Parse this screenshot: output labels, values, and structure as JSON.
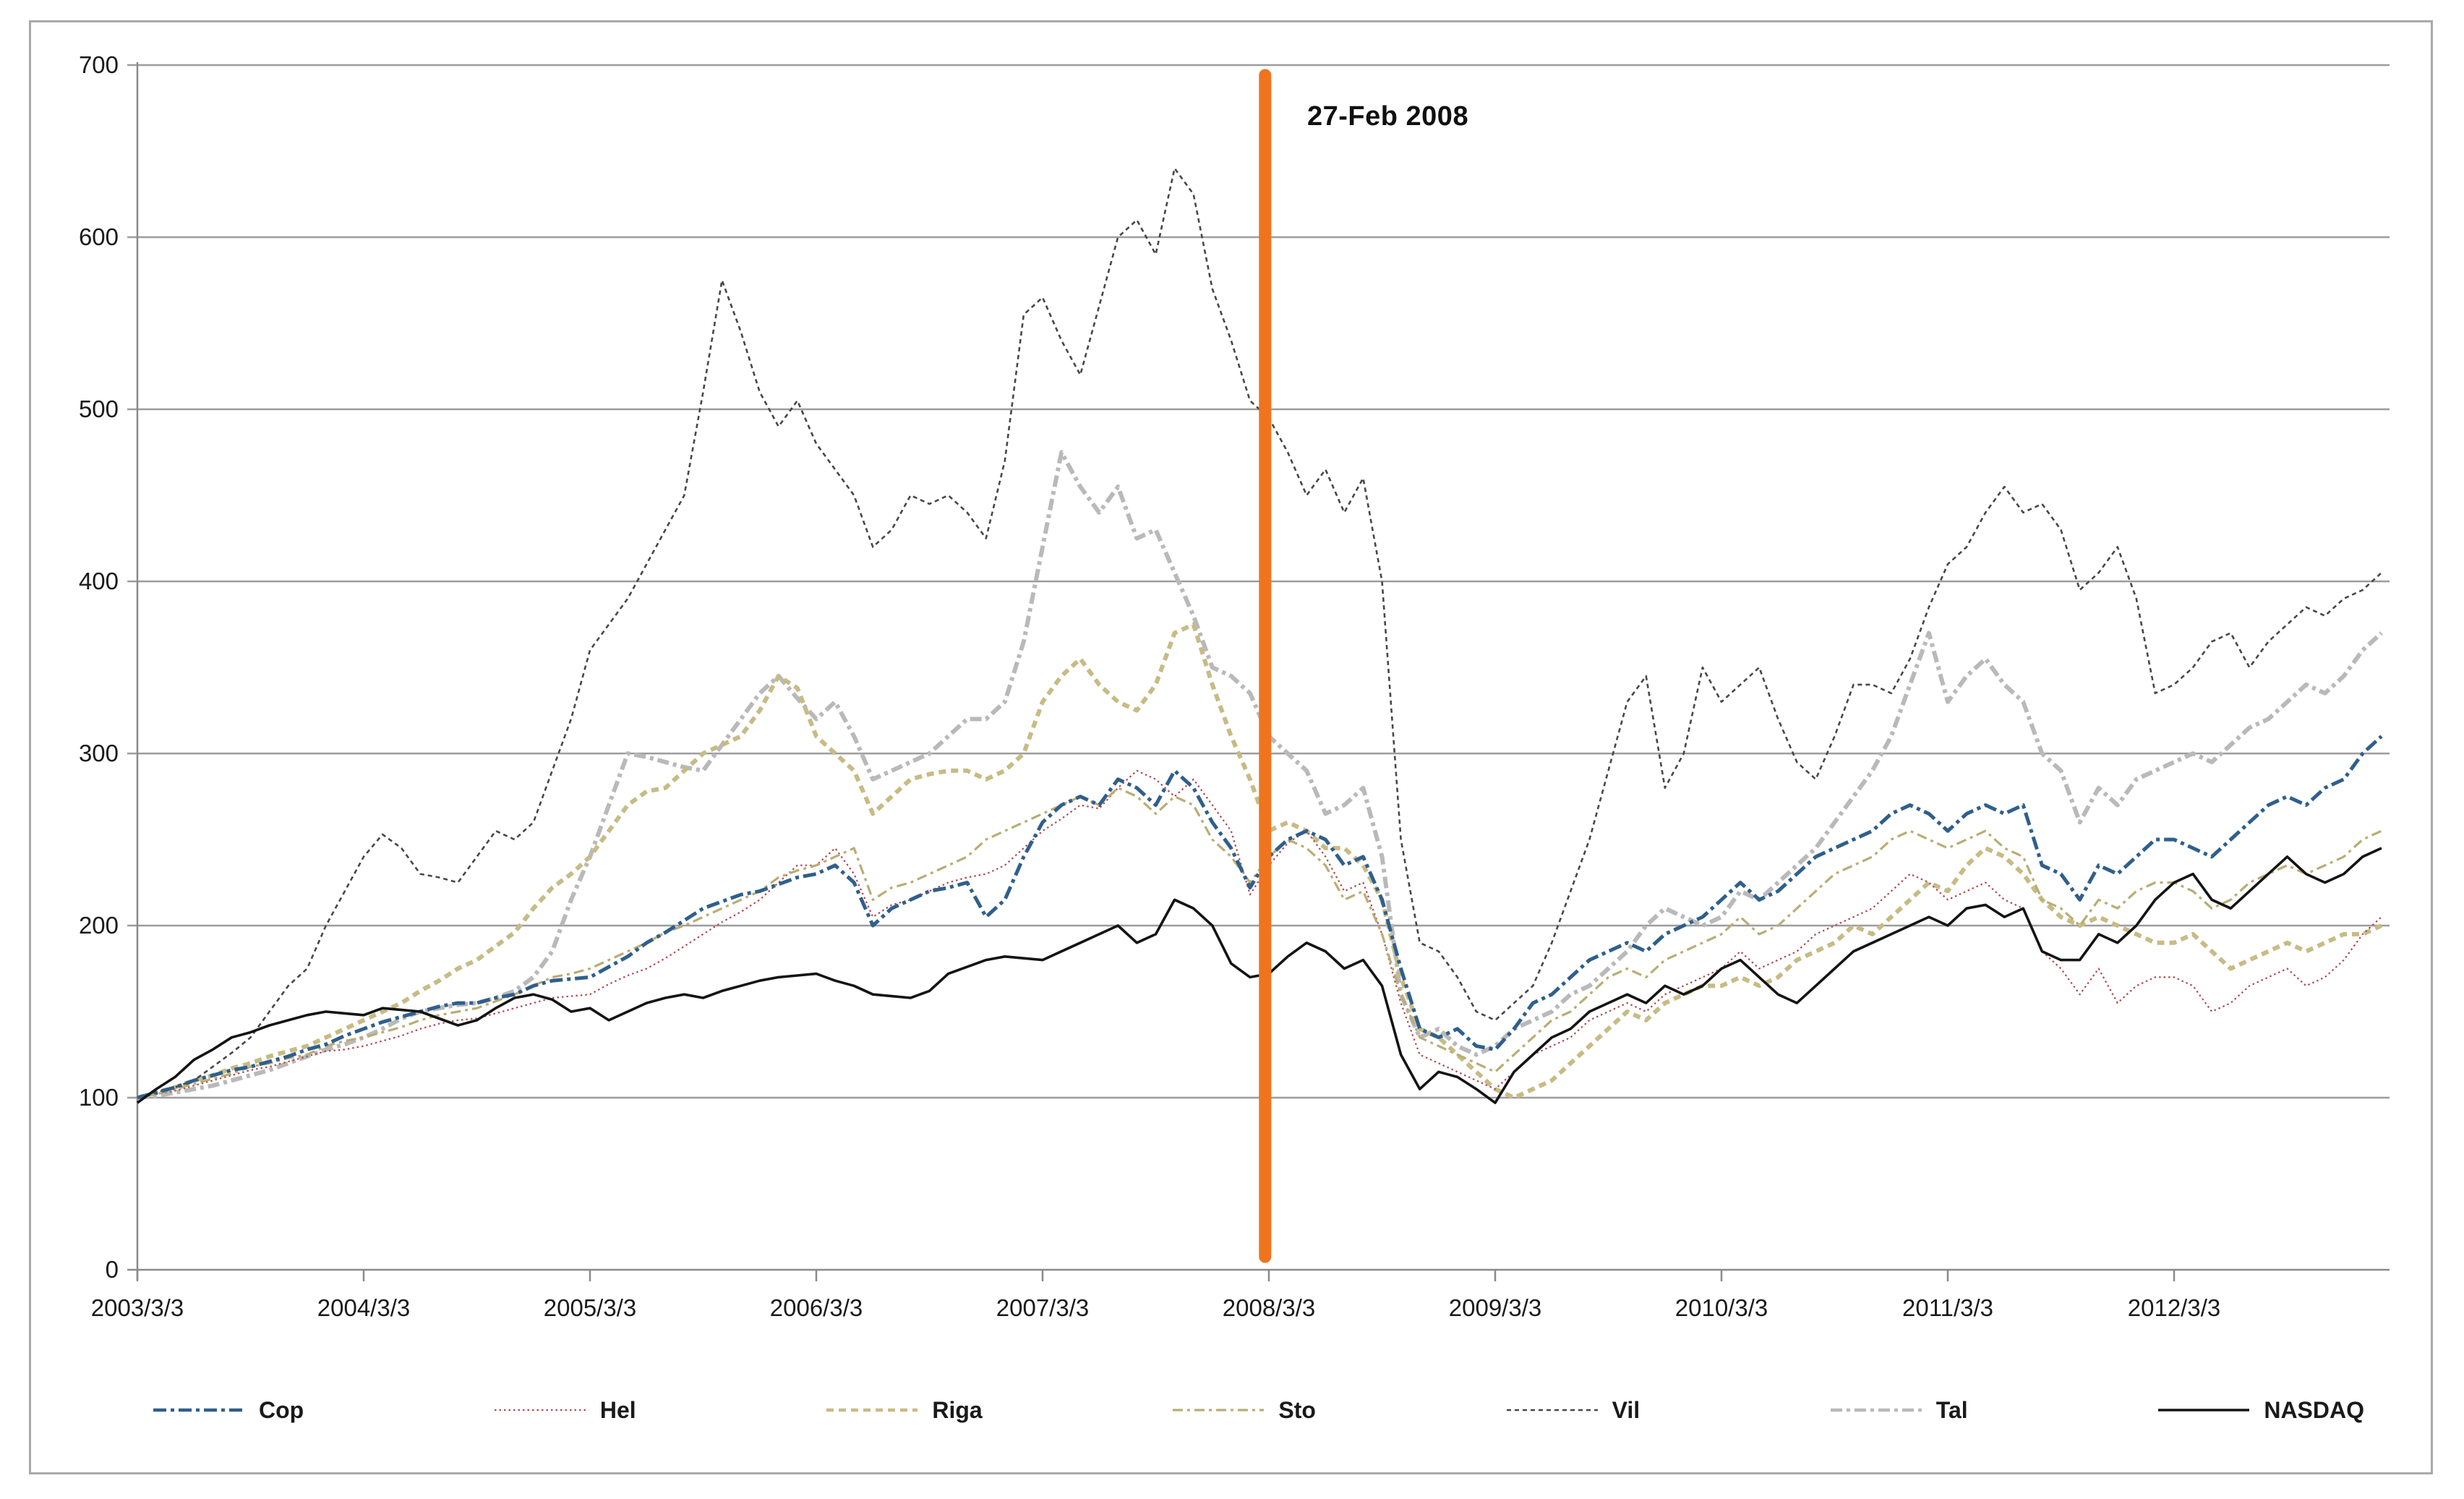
{
  "page": {
    "background": "#ffffff",
    "border_color": "#aaaaaa"
  },
  "annotation": {
    "label": "27-Feb 2008"
  },
  "event_line": {
    "label": "27-Feb 2008",
    "color": "#F0731E",
    "x_months": 59.8
  },
  "axes": {
    "grid_color": "#9c9c9c",
    "axis_color": "#8a8a8a",
    "label_color": "#1a1a1a",
    "y_ticks": [
      "0",
      "100",
      "200",
      "300",
      "400",
      "500",
      "600",
      "700"
    ],
    "x_ticks": [
      "2003/3/3",
      "2004/3/3",
      "2005/3/3",
      "2006/3/3",
      "2007/3/3",
      "2008/3/3",
      "2009/3/3",
      "2010/3/3",
      "2011/3/3",
      "2012/3/3"
    ]
  },
  "chart_data": {
    "type": "line",
    "title": "",
    "xlabel": "",
    "ylabel": "",
    "x_unit": "months since 2003-03-03 (index, base = 100)",
    "x_tick_labels": [
      "2003/3/3",
      "2004/3/3",
      "2005/3/3",
      "2006/3/3",
      "2007/3/3",
      "2008/3/3",
      "2009/3/3",
      "2010/3/3",
      "2011/3/3",
      "2012/3/3"
    ],
    "ylim": [
      0,
      700
    ],
    "grid": true,
    "legend_position": "bottom",
    "event": {
      "label": "27-Feb 2008",
      "position_months": 59.8
    },
    "draw_order": [
      "Tal",
      "Riga",
      "Vil",
      "Hel",
      "Sto",
      "Cop",
      "NASDAQ"
    ],
    "series": [
      {
        "name": "Cop",
        "color": "#2F5F8C",
        "dash": "18 6 5 6",
        "width": 5,
        "values": [
          100,
          103,
          106,
          110,
          113,
          116,
          118,
          121,
          124,
          128,
          131,
          136,
          140,
          144,
          147,
          150,
          153,
          155,
          155,
          158,
          160,
          165,
          168,
          169,
          170,
          176,
          182,
          190,
          196,
          203,
          210,
          214,
          218,
          220,
          224,
          228,
          230,
          235,
          225,
          200,
          210,
          215,
          220,
          222,
          225,
          205,
          215,
          240,
          260,
          270,
          275,
          270,
          285,
          280,
          270,
          290,
          280,
          260,
          245,
          222,
          240,
          250,
          255,
          250,
          235,
          240,
          215,
          175,
          140,
          135,
          140,
          130,
          128,
          140,
          155,
          160,
          170,
          180,
          185,
          190,
          185,
          195,
          200,
          205,
          215,
          225,
          215,
          220,
          230,
          240,
          245,
          250,
          255,
          265,
          270,
          265,
          255,
          265,
          270,
          265,
          270,
          235,
          230,
          215,
          235,
          230,
          240,
          250,
          250,
          245,
          240,
          250,
          260,
          270,
          275,
          270,
          280,
          285,
          300,
          310
        ]
      },
      {
        "name": "Hel",
        "color": "#B04A52",
        "dash": "2.5 4",
        "width": 2.2,
        "values": [
          100,
          102,
          104,
          107,
          110,
          113,
          116,
          118,
          121,
          124,
          127,
          128,
          130,
          133,
          136,
          140,
          143,
          145,
          146,
          149,
          152,
          155,
          158,
          159,
          160,
          166,
          171,
          175,
          181,
          188,
          195,
          202,
          208,
          215,
          225,
          235,
          235,
          245,
          230,
          205,
          212,
          215,
          220,
          225,
          228,
          230,
          235,
          245,
          255,
          262,
          270,
          268,
          280,
          290,
          285,
          275,
          285,
          270,
          255,
          218,
          235,
          248,
          255,
          240,
          220,
          225,
          195,
          155,
          125,
          120,
          115,
          110,
          105,
          115,
          125,
          130,
          135,
          145,
          150,
          155,
          150,
          160,
          165,
          170,
          175,
          185,
          175,
          180,
          185,
          195,
          200,
          205,
          210,
          220,
          230,
          225,
          215,
          220,
          225,
          215,
          210,
          185,
          175,
          160,
          175,
          155,
          165,
          170,
          170,
          165,
          150,
          155,
          165,
          170,
          175,
          165,
          170,
          180,
          195,
          205
        ]
      },
      {
        "name": "Riga",
        "color": "#C7BB85",
        "dash": "10 7",
        "width": 6,
        "values": [
          100,
          103,
          106,
          110,
          113,
          117,
          120,
          124,
          127,
          130,
          135,
          140,
          145,
          150,
          155,
          162,
          168,
          175,
          180,
          188,
          196,
          210,
          222,
          230,
          240,
          255,
          270,
          278,
          280,
          290,
          300,
          305,
          310,
          325,
          345,
          338,
          310,
          300,
          290,
          265,
          275,
          285,
          288,
          290,
          290,
          285,
          290,
          300,
          330,
          345,
          355,
          340,
          330,
          325,
          340,
          370,
          375,
          340,
          310,
          285,
          255,
          260,
          255,
          245,
          245,
          235,
          215,
          170,
          140,
          135,
          125,
          115,
          105,
          100,
          105,
          110,
          120,
          130,
          140,
          150,
          145,
          155,
          160,
          165,
          165,
          170,
          165,
          170,
          180,
          185,
          190,
          200,
          195,
          205,
          215,
          225,
          220,
          235,
          245,
          240,
          230,
          215,
          205,
          200,
          205,
          200,
          195,
          190,
          190,
          195,
          185,
          175,
          180,
          185,
          190,
          185,
          190,
          195,
          195,
          200
        ]
      },
      {
        "name": "Sto",
        "color": "#B9AD75",
        "dash": "14 6 4 6",
        "width": 3.2,
        "values": [
          100,
          102,
          105,
          108,
          111,
          114,
          118,
          120,
          123,
          125,
          130,
          133,
          135,
          138,
          141,
          145,
          148,
          150,
          152,
          156,
          160,
          165,
          170,
          172,
          175,
          180,
          185,
          190,
          196,
          200,
          205,
          210,
          215,
          220,
          228,
          232,
          235,
          240,
          245,
          215,
          222,
          225,
          230,
          235,
          240,
          250,
          255,
          260,
          265,
          270,
          275,
          270,
          280,
          275,
          265,
          275,
          270,
          250,
          240,
          225,
          240,
          250,
          245,
          235,
          215,
          220,
          195,
          160,
          135,
          130,
          125,
          120,
          115,
          125,
          135,
          145,
          150,
          160,
          170,
          175,
          170,
          180,
          185,
          190,
          195,
          205,
          195,
          200,
          210,
          220,
          230,
          235,
          240,
          250,
          255,
          250,
          245,
          250,
          255,
          245,
          240,
          215,
          210,
          200,
          215,
          210,
          220,
          225,
          225,
          220,
          210,
          215,
          225,
          230,
          235,
          230,
          235,
          240,
          250,
          255
        ]
      },
      {
        "name": "Vil",
        "color": "#474747",
        "dash": "6 5",
        "width": 2.6,
        "values": [
          100,
          103,
          106,
          110,
          118,
          126,
          135,
          150,
          165,
          175,
          200,
          220,
          240,
          253,
          245,
          230,
          228,
          225,
          240,
          255,
          250,
          260,
          290,
          320,
          360,
          375,
          390,
          410,
          430,
          450,
          510,
          575,
          545,
          510,
          490,
          505,
          480,
          465,
          450,
          420,
          430,
          450,
          445,
          450,
          440,
          425,
          470,
          555,
          565,
          540,
          520,
          560,
          600,
          610,
          590,
          640,
          625,
          570,
          540,
          505,
          495,
          475,
          450,
          465,
          440,
          460,
          400,
          250,
          190,
          185,
          170,
          150,
          145,
          155,
          165,
          190,
          220,
          250,
          290,
          330,
          345,
          280,
          300,
          350,
          330,
          340,
          350,
          320,
          295,
          285,
          310,
          340,
          340,
          335,
          355,
          385,
          410,
          420,
          440,
          455,
          440,
          445,
          430,
          395,
          405,
          420,
          390,
          335,
          340,
          350,
          365,
          370,
          350,
          365,
          375,
          385,
          380,
          390,
          395,
          405
        ]
      },
      {
        "name": "Tal",
        "color": "#B9B9B9",
        "dash": "16 6 5 6",
        "width": 6,
        "values": [
          100,
          101,
          103,
          105,
          107,
          110,
          113,
          116,
          120,
          124,
          128,
          131,
          135,
          140,
          146,
          150,
          152,
          154,
          155,
          158,
          162,
          170,
          185,
          215,
          240,
          270,
          300,
          298,
          295,
          292,
          290,
          305,
          320,
          335,
          345,
          332,
          320,
          330,
          310,
          285,
          290,
          295,
          300,
          310,
          320,
          320,
          330,
          365,
          420,
          475,
          455,
          440,
          455,
          425,
          430,
          405,
          380,
          350,
          345,
          335,
          310,
          300,
          290,
          265,
          270,
          280,
          240,
          160,
          135,
          140,
          130,
          125,
          130,
          140,
          145,
          150,
          160,
          165,
          175,
          185,
          200,
          210,
          205,
          200,
          205,
          220,
          215,
          225,
          235,
          245,
          260,
          275,
          290,
          310,
          340,
          370,
          330,
          345,
          355,
          340,
          330,
          300,
          290,
          260,
          280,
          270,
          285,
          290,
          295,
          300,
          295,
          305,
          315,
          320,
          330,
          340,
          335,
          345,
          360,
          370
        ]
      },
      {
        "name": "NASDAQ",
        "color": "#141414",
        "dash": "",
        "width": 3.6,
        "values": [
          97,
          105,
          112,
          122,
          128,
          135,
          138,
          142,
          145,
          148,
          150,
          149,
          148,
          152,
          151,
          150,
          146,
          142,
          145,
          152,
          158,
          160,
          157,
          150,
          152,
          145,
          150,
          155,
          158,
          160,
          158,
          162,
          165,
          168,
          170,
          171,
          172,
          168,
          165,
          160,
          159,
          158,
          162,
          172,
          176,
          180,
          182,
          181,
          180,
          185,
          190,
          195,
          200,
          190,
          195,
          215,
          210,
          200,
          178,
          170,
          172,
          182,
          190,
          185,
          175,
          180,
          165,
          125,
          105,
          115,
          112,
          105,
          97,
          115,
          125,
          135,
          140,
          150,
          155,
          160,
          155,
          165,
          160,
          165,
          175,
          180,
          170,
          160,
          155,
          165,
          175,
          185,
          190,
          195,
          200,
          205,
          200,
          210,
          212,
          205,
          210,
          185,
          180,
          180,
          195,
          190,
          200,
          215,
          225,
          230,
          215,
          210,
          220,
          230,
          240,
          230,
          225,
          230,
          240,
          245
        ]
      }
    ]
  },
  "legend": {
    "items": [
      {
        "label": "Cop"
      },
      {
        "label": "Hel"
      },
      {
        "label": "Riga"
      },
      {
        "label": "Sto"
      },
      {
        "label": "Vil"
      },
      {
        "label": "Tal"
      },
      {
        "label": "NASDAQ"
      }
    ]
  }
}
